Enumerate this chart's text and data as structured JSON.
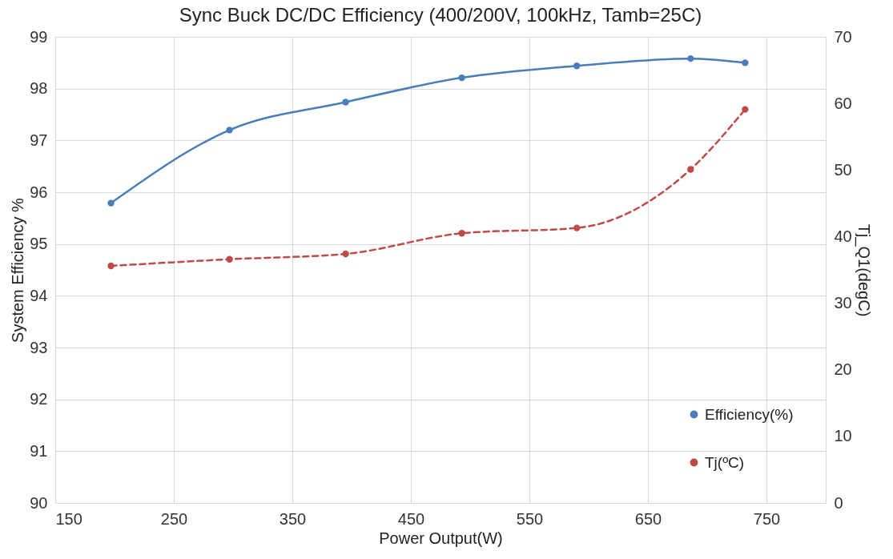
{
  "chart_data": {
    "type": "line",
    "title": "Sync Buck DC/DC Efficiency (400/200V, 100kHz, Tamb=25C)",
    "xlabel": "Power Output(W)",
    "ylabel": "System Efficiency %",
    "y2label": "Tj_Q1(degC)",
    "x": [
      197,
      297,
      395,
      493,
      590,
      686,
      732
    ],
    "series": [
      {
        "name": "Efficiency(%)",
        "color": "#4a7ebb",
        "line_style": "solid",
        "values": [
          95.79,
          97.2,
          97.74,
          98.21,
          98.44,
          98.58,
          98.5
        ]
      },
      {
        "name": "Tj(ºC)",
        "color": "#be4b48",
        "line_style": "dashed",
        "axis": "y2",
        "values": [
          35.6,
          36.6,
          37.4,
          40.5,
          41.3,
          50.1,
          59.1
        ]
      }
    ],
    "xlim": [
      150,
      800
    ],
    "xticks": [
      150,
      250,
      350,
      450,
      550,
      650,
      750
    ],
    "ylim": [
      90,
      99
    ],
    "yticks": [
      90,
      91,
      92,
      93,
      94,
      95,
      96,
      97,
      98,
      99
    ],
    "y2lim": [
      0,
      70
    ],
    "y2ticks": [
      0,
      10,
      20,
      30,
      40,
      50,
      60,
      70
    ],
    "grid": true,
    "legend": "bottom right",
    "marker": "circle"
  }
}
